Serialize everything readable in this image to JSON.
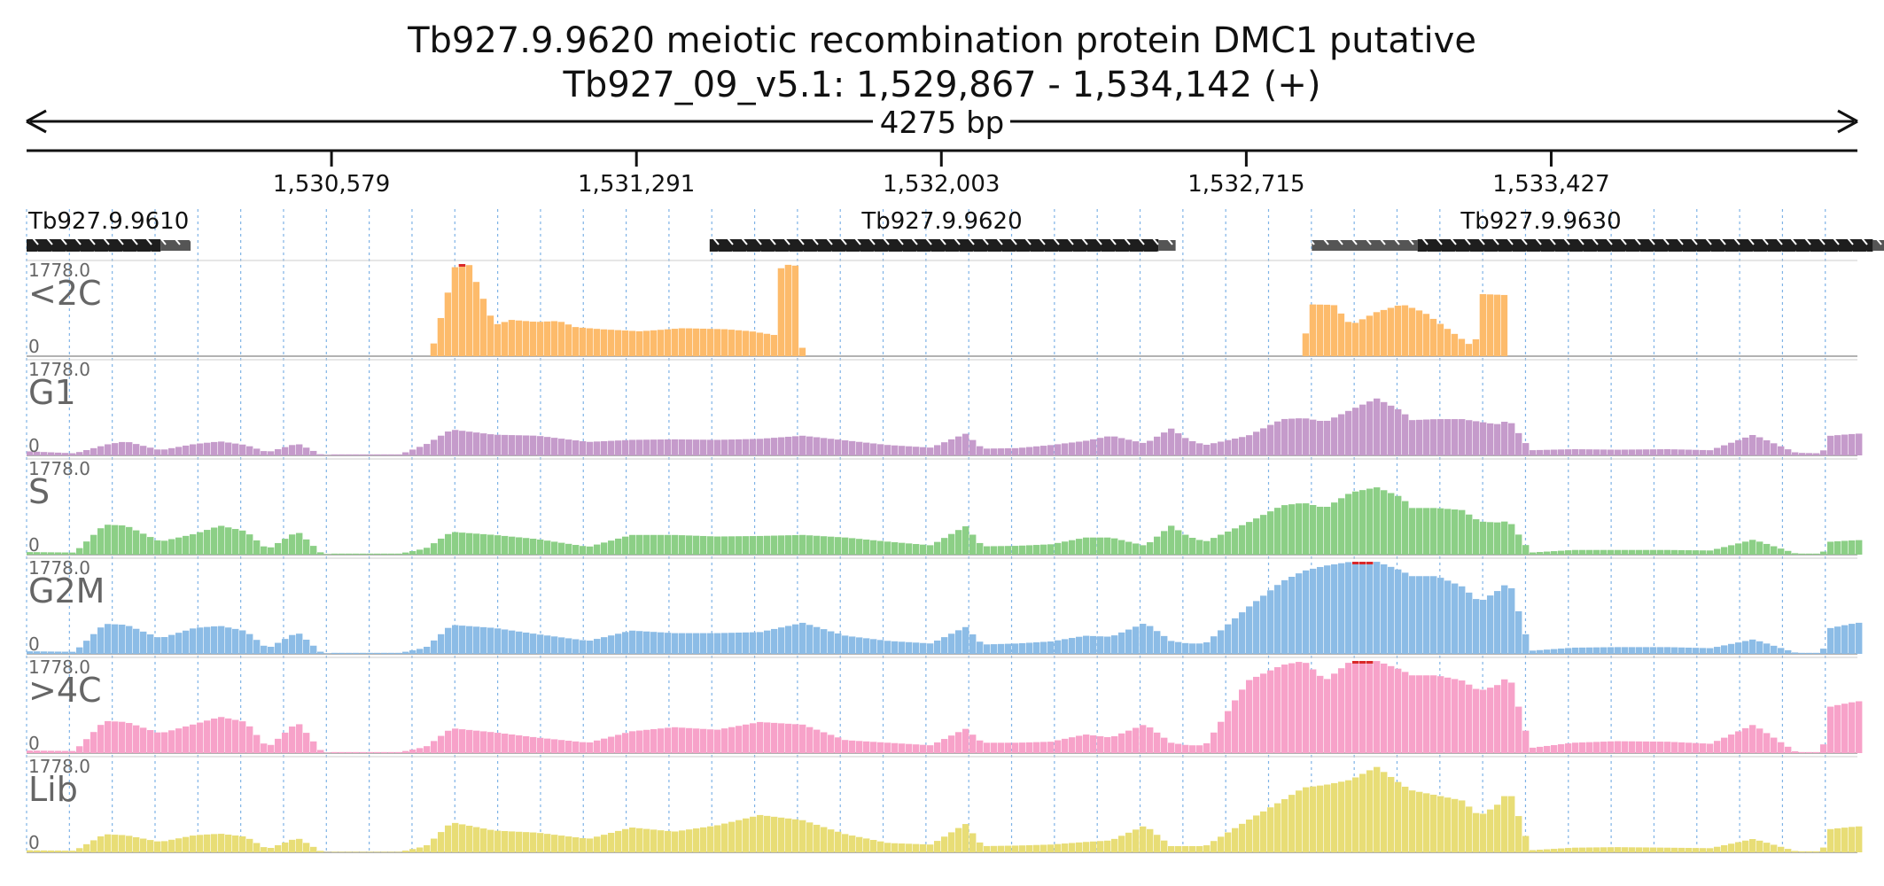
{
  "header": {
    "title": "Tb927.9.9620  meiotic recombination protein DMC1  putative",
    "locus": "Tb927_09_v5.1: 1,529,867 - 1,534,142 (+)",
    "span_label": "4275 bp"
  },
  "ruler": {
    "ticks": [
      "1,530,579",
      "1,531,291",
      "1,532,003",
      "1,532,715",
      "1,533,427"
    ]
  },
  "genes": [
    {
      "label": "Tb927.9.9610"
    },
    {
      "label": "Tb927.9.9620"
    },
    {
      "label": "Tb927.9.9630"
    }
  ],
  "colors": {
    "<2C": "#fdbb6b",
    "G1": "#c59bcb",
    "S": "#8ccf86",
    "G2M": "#8cbce6",
    "4C": "#f7a2c9",
    "Lib": "#e8dd76",
    "clip": "#d9292a",
    "gene": "#1e1e1e",
    "utr": "#555555",
    "gridline": "#7fb3e6"
  },
  "chart_data": {
    "type": "area",
    "title": "Tb927.9.9620  meiotic recombination protein DMC1  putative",
    "subtitle": "Tb927_09_v5.1: 1,529,867 - 1,534,142 (+)",
    "xlabel": "",
    "ylabel": "",
    "xlim": [
      1529867,
      1534142
    ],
    "ylim": [
      0,
      1778.0
    ],
    "grid": true,
    "x_ticks": [
      1530579,
      1531291,
      1532003,
      1532715,
      1533427
    ],
    "track_max_label": "1778.0",
    "track_min_label": "0",
    "genes": [
      {
        "name": "Tb927.9.9610",
        "cds": [
          1529867,
          1530180
        ],
        "utr": [
          1530180,
          1530250
        ],
        "strand": "-"
      },
      {
        "name": "Tb927.9.9620",
        "cds": [
          1531462,
          1532510
        ],
        "utr": [
          1532510,
          1532550
        ],
        "strand": "-"
      },
      {
        "name": "Tb927.9.9630",
        "cds": [
          1533115,
          1534178
        ],
        "utr": [
          1534178,
          1534345
        ],
        "utr5": [
          1532868,
          1533115
        ],
        "strand": "-"
      }
    ],
    "series": [
      {
        "name": "<2C",
        "color": "#fdbb6b",
        "x": [
          1530810,
          1530870,
          1530900,
          1530960,
          1531000,
          1531060,
          1531110,
          1531150,
          1531210,
          1531300,
          1531400,
          1531500,
          1531560,
          1531620,
          1531630,
          1531670,
          1531680,
          1532850,
          1532860,
          1532920,
          1532960,
          1533020,
          1533080,
          1533130,
          1533190,
          1533250,
          1533260,
          1533320,
          1533330
        ],
        "y": [
          0,
          1778,
          1778,
          600,
          700,
          660,
          680,
          560,
          520,
          480,
          540,
          520,
          480,
          400,
          1778,
          1740,
          0,
          0,
          1000,
          990,
          600,
          850,
          1000,
          850,
          500,
          150,
          1200,
          1180,
          0
        ]
      },
      {
        "name": "G1",
        "color": "#c59bcb",
        "x": [
          1529867,
          1529980,
          1530060,
          1530100,
          1530180,
          1530260,
          1530320,
          1530380,
          1530430,
          1530500,
          1530560,
          1530580,
          1530740,
          1530800,
          1530860,
          1530960,
          1531060,
          1531180,
          1531280,
          1531380,
          1531480,
          1531580,
          1531680,
          1531780,
          1531880,
          1531980,
          1532060,
          1532100,
          1532180,
          1532260,
          1532340,
          1532400,
          1532480,
          1532540,
          1532580,
          1532620,
          1532720,
          1532800,
          1532850,
          1532900,
          1532960,
          1533020,
          1533080,
          1533100,
          1533160,
          1533220,
          1533260,
          1533300,
          1533330,
          1533380,
          1533480,
          1533580,
          1533700,
          1533800,
          1533900,
          1534000,
          1534060,
          1534080,
          1534142
        ],
        "y": [
          80,
          40,
          220,
          270,
          100,
          220,
          270,
          200,
          60,
          230,
          0,
          20,
          20,
          210,
          500,
          400,
          380,
          260,
          300,
          310,
          300,
          320,
          380,
          290,
          200,
          150,
          420,
          130,
          140,
          200,
          280,
          380,
          230,
          520,
          300,
          200,
          380,
          700,
          720,
          650,
          880,
          1100,
          850,
          680,
          700,
          700,
          650,
          600,
          680,
          100,
          120,
          110,
          120,
          100,
          400,
          50,
          40,
          380,
          420
        ]
      },
      {
        "name": "S",
        "color": "#8ccf86",
        "x": [
          1529867,
          1529980,
          1530050,
          1530100,
          1530180,
          1530260,
          1530320,
          1530380,
          1530430,
          1530500,
          1530560,
          1530580,
          1530740,
          1530800,
          1530860,
          1530960,
          1531060,
          1531180,
          1531280,
          1531380,
          1531480,
          1531580,
          1531680,
          1531780,
          1531880,
          1531980,
          1532060,
          1532100,
          1532180,
          1532260,
          1532340,
          1532400,
          1532480,
          1532540,
          1532580,
          1532620,
          1532720,
          1532800,
          1532850,
          1532900,
          1532960,
          1533020,
          1533080,
          1533100,
          1533160,
          1533220,
          1533260,
          1533300,
          1533330,
          1533380,
          1533480,
          1533580,
          1533700,
          1533800,
          1533900,
          1534000,
          1534060,
          1534080,
          1534142
        ],
        "y": [
          50,
          40,
          580,
          560,
          250,
          400,
          560,
          450,
          100,
          450,
          0,
          20,
          20,
          120,
          440,
          380,
          300,
          150,
          380,
          380,
          350,
          360,
          380,
          330,
          250,
          180,
          550,
          160,
          170,
          200,
          330,
          330,
          170,
          560,
          350,
          250,
          620,
          950,
          1000,
          900,
          1200,
          1300,
          1100,
          900,
          900,
          860,
          640,
          620,
          650,
          40,
          90,
          90,
          90,
          80,
          290,
          20,
          20,
          250,
          280
        ]
      },
      {
        "name": "G2M",
        "color": "#8cbce6",
        "x": [
          1529867,
          1529980,
          1530050,
          1530100,
          1530180,
          1530260,
          1530320,
          1530380,
          1530430,
          1530500,
          1530560,
          1530580,
          1530740,
          1530800,
          1530860,
          1530960,
          1531060,
          1531180,
          1531280,
          1531380,
          1531480,
          1531580,
          1531680,
          1531780,
          1531880,
          1531980,
          1532060,
          1532100,
          1532180,
          1532260,
          1532340,
          1532400,
          1532480,
          1532540,
          1532580,
          1532620,
          1532720,
          1532800,
          1532850,
          1532900,
          1532960,
          1533020,
          1533080,
          1533100,
          1533160,
          1533220,
          1533260,
          1533300,
          1533330,
          1533380,
          1533480,
          1533580,
          1533700,
          1533800,
          1533900,
          1534000,
          1534060,
          1534080,
          1534142
        ],
        "y": [
          50,
          40,
          580,
          560,
          300,
          500,
          540,
          440,
          100,
          420,
          0,
          20,
          20,
          120,
          560,
          500,
          380,
          250,
          450,
          400,
          400,
          420,
          600,
          350,
          250,
          200,
          520,
          180,
          200,
          240,
          350,
          330,
          600,
          250,
          200,
          200,
          900,
          1400,
          1600,
          1700,
          1778,
          1778,
          1600,
          1500,
          1500,
          1300,
          1000,
          1200,
          1400,
          60,
          120,
          130,
          130,
          110,
          280,
          20,
          20,
          500,
          600
        ]
      },
      {
        "name": ">4C",
        "color": "#f7a2c9",
        "x": [
          1529867,
          1529980,
          1530050,
          1530100,
          1530180,
          1530260,
          1530320,
          1530380,
          1530430,
          1530500,
          1530560,
          1530580,
          1530740,
          1530800,
          1530860,
          1530960,
          1531060,
          1531180,
          1531280,
          1531380,
          1531480,
          1531580,
          1531680,
          1531780,
          1531880,
          1531980,
          1532060,
          1532100,
          1532180,
          1532260,
          1532340,
          1532400,
          1532480,
          1532540,
          1532580,
          1532620,
          1532720,
          1532800,
          1532850,
          1532900,
          1532960,
          1533020,
          1533080,
          1533100,
          1533160,
          1533220,
          1533260,
          1533300,
          1533330,
          1533380,
          1533480,
          1533580,
          1533700,
          1533800,
          1533900,
          1534000,
          1534060,
          1534080,
          1534142
        ],
        "y": [
          50,
          40,
          620,
          600,
          380,
          560,
          700,
          600,
          100,
          600,
          0,
          20,
          20,
          120,
          480,
          400,
          300,
          200,
          420,
          500,
          450,
          600,
          550,
          250,
          200,
          150,
          470,
          200,
          200,
          220,
          360,
          300,
          560,
          200,
          150,
          150,
          1400,
          1700,
          1778,
          1400,
          1778,
          1778,
          1600,
          1500,
          1500,
          1400,
          1200,
          1300,
          1500,
          100,
          200,
          230,
          220,
          180,
          550,
          20,
          20,
          900,
          1000
        ]
      },
      {
        "name": "Lib",
        "color": "#e8dd76",
        "x": [
          1529867,
          1529980,
          1530050,
          1530100,
          1530180,
          1530260,
          1530320,
          1530380,
          1530430,
          1530500,
          1530560,
          1530580,
          1530740,
          1530800,
          1530860,
          1530960,
          1531060,
          1531180,
          1531280,
          1531380,
          1531480,
          1531580,
          1531680,
          1531780,
          1531880,
          1531980,
          1532060,
          1532100,
          1532180,
          1532260,
          1532340,
          1532400,
          1532480,
          1532540,
          1532580,
          1532620,
          1532720,
          1532800,
          1532850,
          1532900,
          1532960,
          1533020,
          1533080,
          1533100,
          1533160,
          1533220,
          1533260,
          1533300,
          1533330,
          1533380,
          1533480,
          1533580,
          1533700,
          1533800,
          1533900,
          1534000,
          1534060,
          1534080,
          1534142
        ],
        "y": [
          40,
          30,
          350,
          330,
          200,
          330,
          360,
          300,
          60,
          280,
          0,
          10,
          10,
          120,
          580,
          420,
          380,
          260,
          480,
          400,
          520,
          720,
          620,
          350,
          180,
          150,
          550,
          120,
          130,
          150,
          200,
          230,
          520,
          120,
          120,
          120,
          620,
          1000,
          1250,
          1300,
          1400,
          1650,
          1300,
          1200,
          1100,
          1000,
          700,
          900,
          1200,
          40,
          90,
          100,
          90,
          80,
          260,
          20,
          20,
          450,
          500
        ]
      }
    ]
  }
}
